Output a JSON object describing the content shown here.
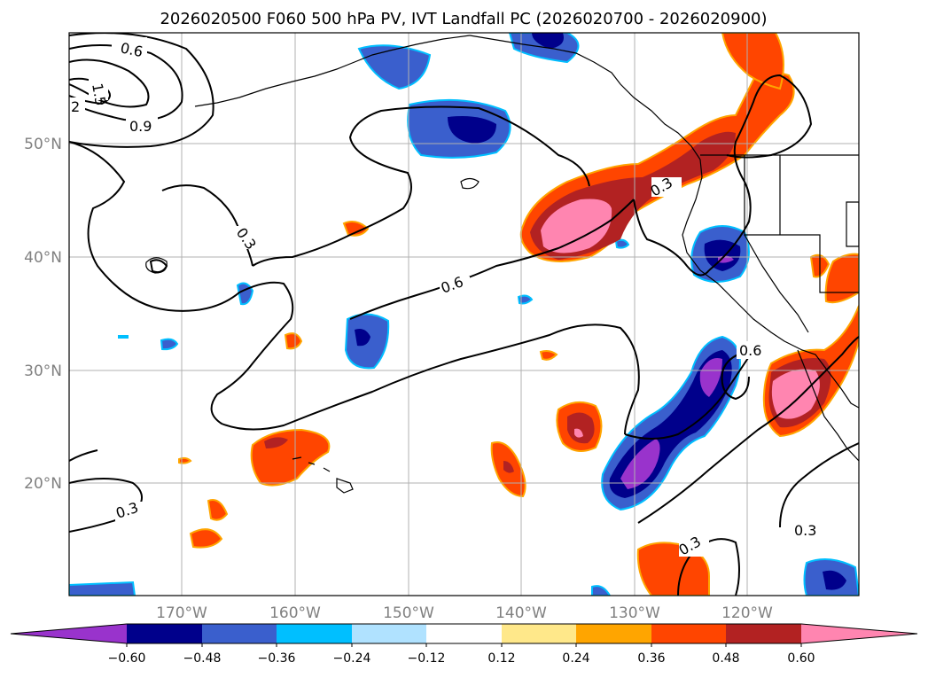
{
  "title": "2026020500 F060 500 hPa PV, IVT Landfall PC (2026020700 - 2026020900)",
  "lat_labels": [
    "50°N",
    "40°N",
    "30°N",
    "20°N"
  ],
  "lon_labels": [
    "170°W",
    "160°W",
    "150°W",
    "140°W",
    "130°W",
    "120°W"
  ],
  "colorbar": {
    "colors": [
      "#9933cc",
      "#00008b",
      "#3a5fcd",
      "#00bfff",
      "#b0e2ff",
      "#ffffff",
      "#ffe88a",
      "#ffa500",
      "#ff4500",
      "#b22222",
      "#ff85b0"
    ],
    "tick_labels": [
      "−0.60",
      "−0.48",
      "−0.36",
      "−0.24",
      "−0.12",
      "0.12",
      "0.24",
      "0.36",
      "0.48",
      "0.60"
    ]
  },
  "contour_labels": {
    "c1": "0.6",
    "c2": "1.5",
    "c3": "2",
    "c4": "0.9",
    "c5": "0.3",
    "c6": "0.6",
    "c7": "0.3",
    "c8": "0.6",
    "c9": "0.3",
    "c10": "0.3",
    "c11": "0.3"
  }
}
